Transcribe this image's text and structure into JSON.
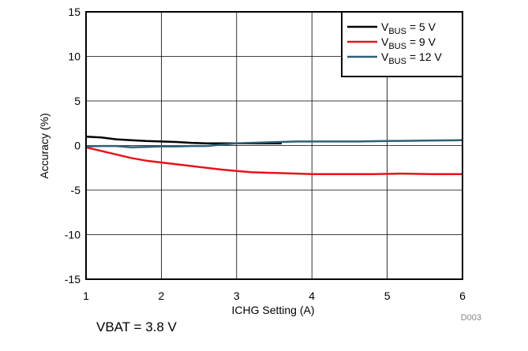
{
  "chart_data": {
    "type": "line",
    "title": "",
    "xlabel": "ICHG Setting (A)",
    "ylabel": "Accuracy (%)",
    "xlim": [
      1,
      6
    ],
    "ylim": [
      -15,
      15
    ],
    "xticks": [
      1,
      2,
      3,
      4,
      5,
      6
    ],
    "yticks": [
      15,
      10,
      5,
      0,
      -5,
      -10,
      -15
    ],
    "grid": true,
    "legend_position": "top-right",
    "series": [
      {
        "legend_prefix": "V",
        "legend_sub": "BUS",
        "legend_suffix": " = 5 V",
        "color": "#000000",
        "x": [
          1.0,
          1.2,
          1.4,
          1.6,
          1.8,
          2.0,
          2.2,
          2.4,
          2.6,
          2.8,
          3.0,
          3.2,
          3.4,
          3.6
        ],
        "y": [
          1.0,
          0.9,
          0.7,
          0.6,
          0.5,
          0.45,
          0.4,
          0.3,
          0.25,
          0.25,
          0.25,
          0.25,
          0.25,
          0.25
        ]
      },
      {
        "legend_prefix": "V",
        "legend_sub": "BUS",
        "legend_suffix": " = 9 V",
        "color": "#e8121b",
        "x": [
          1.0,
          1.2,
          1.4,
          1.6,
          1.8,
          2.0,
          2.2,
          2.4,
          2.6,
          2.8,
          3.0,
          3.2,
          3.4,
          3.6,
          3.8,
          4.0,
          4.4,
          4.8,
          5.2,
          5.6,
          6.0
        ],
        "y": [
          -0.2,
          -0.6,
          -1.0,
          -1.4,
          -1.7,
          -1.9,
          -2.1,
          -2.3,
          -2.5,
          -2.7,
          -2.85,
          -3.0,
          -3.05,
          -3.1,
          -3.15,
          -3.2,
          -3.2,
          -3.2,
          -3.15,
          -3.2,
          -3.2
        ]
      },
      {
        "legend_prefix": "V",
        "legend_sub": "BUS",
        "legend_suffix": " = 12 V",
        "color": "#2e5f77",
        "x": [
          1.0,
          1.2,
          1.4,
          1.6,
          1.8,
          2.0,
          2.2,
          2.4,
          2.6,
          2.8,
          3.0,
          3.4,
          3.8,
          4.2,
          4.6,
          5.0,
          5.5,
          6.0
        ],
        "y": [
          -0.1,
          -0.05,
          -0.05,
          -0.2,
          -0.15,
          -0.1,
          -0.1,
          -0.05,
          -0.05,
          0.1,
          0.25,
          0.35,
          0.45,
          0.45,
          0.45,
          0.5,
          0.55,
          0.6
        ]
      }
    ],
    "figure_id": "D003"
  },
  "note": "VBAT = 3.8 V"
}
